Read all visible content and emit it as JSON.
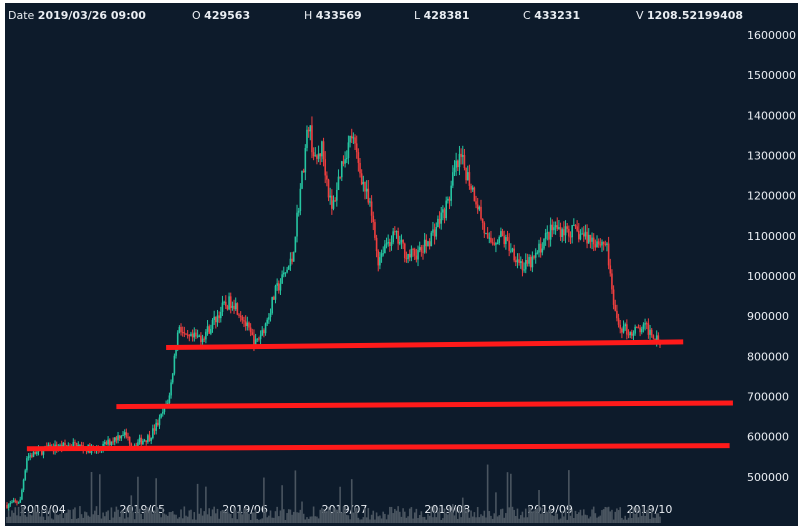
{
  "ohlc_bar": {
    "date_label": "Date",
    "date_value": "2019/03/26 09:00",
    "open_label": "O",
    "open_value": "429563",
    "high_label": "H",
    "high_value": "433569",
    "low_label": "L",
    "low_value": "428381",
    "close_label": "C",
    "close_value": "433231",
    "volume_label": "V",
    "volume_value": "1208.52199408"
  },
  "colors": {
    "background": "#0d1b2b",
    "up": "#26c6a2",
    "down": "#ef3f3f",
    "volume": "#4a5560",
    "trendline": "#ff1a1a",
    "text": "#e9edf2"
  },
  "chart_data": {
    "type": "candlestick",
    "title": "",
    "xlabel": "",
    "ylabel": "",
    "ylim": [
      440000,
      1620000
    ],
    "y_ticks": [
      500000,
      600000,
      700000,
      800000,
      900000,
      1000000,
      1100000,
      1200000,
      1300000,
      1400000,
      1500000,
      1600000
    ],
    "y_tick_labels": [
      "500000",
      "600000",
      "700000",
      "800000",
      "900000",
      "1000000",
      "1100000",
      "1200000",
      "1300000",
      "1400000",
      "1500000",
      "1600000"
    ],
    "x_tick_labels": [
      "2019/04",
      "2019/05",
      "2019/06",
      "2019/07",
      "2019/08",
      "2019/09",
      "2019/10"
    ],
    "x_tick_dates": [
      "2019-04-01",
      "2019-05-01",
      "2019-06-01",
      "2019-07-01",
      "2019-08-01",
      "2019-09-01",
      "2019-10-01"
    ],
    "x_range": [
      "2019-03-26",
      "2019-10-09"
    ],
    "anchors": [
      [
        "2019-03-26",
        430000
      ],
      [
        "2019-03-30",
        440000
      ],
      [
        "2019-04-01",
        550000
      ],
      [
        "2019-04-07",
        570000
      ],
      [
        "2019-04-15",
        580000
      ],
      [
        "2019-04-22",
        565000
      ],
      [
        "2019-04-30",
        610000
      ],
      [
        "2019-05-03",
        580000
      ],
      [
        "2019-05-08",
        600000
      ],
      [
        "2019-05-11",
        640000
      ],
      [
        "2019-05-14",
        700000
      ],
      [
        "2019-05-16",
        830000
      ],
      [
        "2019-05-17",
        880000
      ],
      [
        "2019-05-19",
        840000
      ],
      [
        "2019-05-24",
        850000
      ],
      [
        "2019-05-26",
        870000
      ],
      [
        "2019-05-30",
        920000
      ],
      [
        "2019-06-02",
        940000
      ],
      [
        "2019-06-05",
        900000
      ],
      [
        "2019-06-07",
        860000
      ],
      [
        "2019-06-09",
        830000
      ],
      [
        "2019-06-12",
        880000
      ],
      [
        "2019-06-15",
        960000
      ],
      [
        "2019-06-20",
        1040000
      ],
      [
        "2019-06-22",
        1180000
      ],
      [
        "2019-06-25",
        1380000
      ],
      [
        "2019-06-27",
        1280000
      ],
      [
        "2019-06-29",
        1320000
      ],
      [
        "2019-07-02",
        1160000
      ],
      [
        "2019-07-05",
        1280000
      ],
      [
        "2019-07-08",
        1350000
      ],
      [
        "2019-07-10",
        1280000
      ],
      [
        "2019-07-14",
        1150000
      ],
      [
        "2019-07-16",
        1040000
      ],
      [
        "2019-07-18",
        1080000
      ],
      [
        "2019-07-21",
        1100000
      ],
      [
        "2019-07-25",
        1050000
      ],
      [
        "2019-07-29",
        1060000
      ],
      [
        "2019-08-01",
        1100000
      ],
      [
        "2019-08-06",
        1180000
      ],
      [
        "2019-08-08",
        1260000
      ],
      [
        "2019-08-10",
        1290000
      ],
      [
        "2019-08-12",
        1250000
      ],
      [
        "2019-08-15",
        1180000
      ],
      [
        "2019-08-18",
        1080000
      ],
      [
        "2019-08-22",
        1100000
      ],
      [
        "2019-08-25",
        1070000
      ],
      [
        "2019-08-29",
        1020000
      ],
      [
        "2019-09-01",
        1040000
      ],
      [
        "2019-09-04",
        1090000
      ],
      [
        "2019-09-07",
        1120000
      ],
      [
        "2019-09-13",
        1110000
      ],
      [
        "2019-09-19",
        1090000
      ],
      [
        "2019-09-23",
        1080000
      ],
      [
        "2019-09-24",
        990000
      ],
      [
        "2019-09-26",
        880000
      ],
      [
        "2019-09-30",
        860000
      ],
      [
        "2019-10-05",
        870000
      ],
      [
        "2019-10-09",
        842000
      ]
    ],
    "trendlines": [
      {
        "from": [
          "2019-05-13",
          822000
        ],
        "to": [
          "2019-10-16",
          836000
        ]
      },
      {
        "from": [
          "2019-04-28",
          675000
        ],
        "to": [
          "2019-10-31",
          684000
        ]
      },
      {
        "from": [
          "2019-04-01",
          570000
        ],
        "to": [
          "2019-10-30",
          578000
        ]
      }
    ]
  }
}
